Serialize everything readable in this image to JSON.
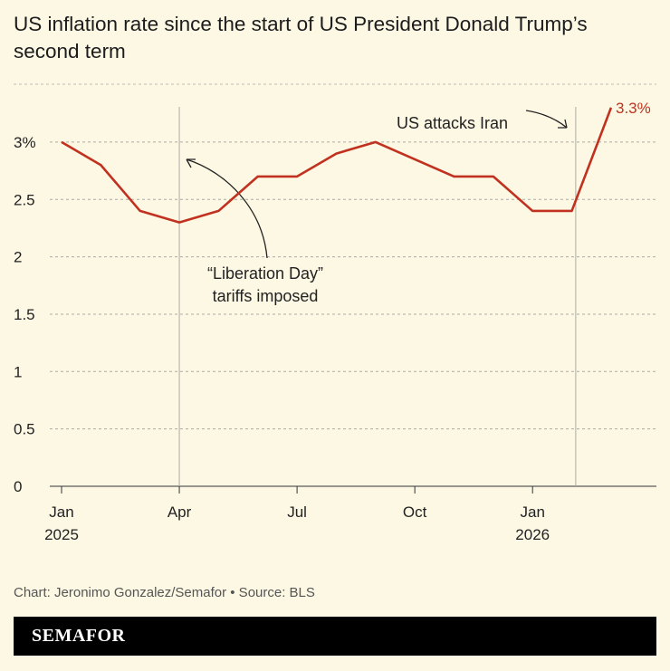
{
  "title": "US inflation rate since the start of US President Donald Trump’s second term",
  "source": "Chart: Jeronimo Gonzalez/Semafor • Source: BLS",
  "brand": "SEMAFOR",
  "chart_data": {
    "type": "line",
    "x": [
      "2025-01",
      "2025-02",
      "2025-03",
      "2025-04",
      "2025-05",
      "2025-06",
      "2025-07",
      "2025-08",
      "2025-09",
      "2025-10",
      "2025-11",
      "2025-12",
      "2026-01",
      "2026-02",
      "2026-03"
    ],
    "values": [
      3.0,
      2.8,
      2.4,
      2.3,
      2.4,
      2.7,
      2.7,
      2.9,
      3.0,
      null,
      2.7,
      2.7,
      2.4,
      2.4,
      3.3
    ],
    "ylim": [
      0,
      3.3
    ],
    "yticks": [
      "0",
      "0.5",
      "1",
      "1.5",
      "2",
      "2.5",
      "3%"
    ],
    "xticks": [
      {
        "label": "Jan",
        "sub": "2025",
        "month": 0
      },
      {
        "label": "Apr",
        "sub": "",
        "month": 3
      },
      {
        "label": "Jul",
        "sub": "",
        "month": 6
      },
      {
        "label": "Oct",
        "sub": "",
        "month": 9
      },
      {
        "label": "Jan",
        "sub": "2026",
        "month": 12
      }
    ],
    "end_label": "3.3%",
    "grid": true,
    "line_color": "#c0321f",
    "annotations": [
      {
        "month": 3,
        "text": [
          "“Liberation Day”",
          "tariffs imposed"
        ]
      },
      {
        "month": 13.1,
        "text": [
          "US attacks Iran"
        ]
      }
    ]
  }
}
